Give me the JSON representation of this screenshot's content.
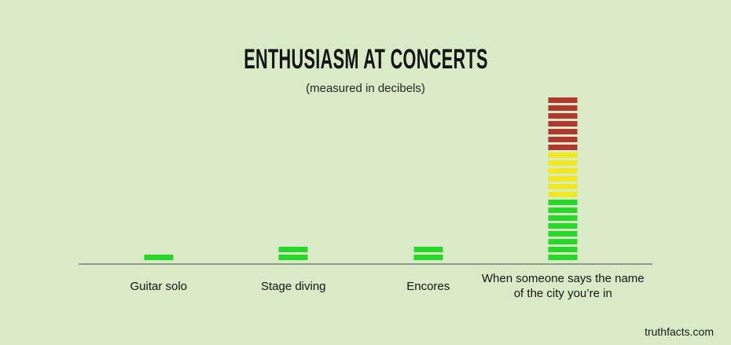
{
  "header": {
    "title": "ENTHUSIASM AT CONCERTS",
    "subtitle": "(measured in decibels)"
  },
  "footer": {
    "site": "truthfacts.com"
  },
  "chart_data": {
    "type": "bar",
    "title": "ENTHUSIASM AT CONCERTS",
    "subtitle": "(measured in decibels)",
    "unit": "decibels",
    "style": "equalizer-segment bars on a horizontal baseline, no y-axis, no gridlines, no legend",
    "categories": [
      "Guitar solo",
      "Stage diving",
      "Encores",
      "When someone says the name of the city you’re in"
    ],
    "values_in_segments": [
      1,
      2,
      2,
      21
    ],
    "bars": [
      {
        "label": "Guitar solo",
        "label_lines": [
          "Guitar solo"
        ],
        "segments": [
          {
            "color": "green",
            "count": 1
          }
        ]
      },
      {
        "label": "Stage diving",
        "label_lines": [
          "Stage diving"
        ],
        "segments": [
          {
            "color": "green",
            "count": 2
          }
        ]
      },
      {
        "label": "Encores",
        "label_lines": [
          "Encores"
        ],
        "segments": [
          {
            "color": "green",
            "count": 2
          }
        ]
      },
      {
        "label": "When someone says the name of the city you’re in",
        "label_lines": [
          "When someone says the name",
          "of the city you’re in"
        ],
        "segments": [
          {
            "color": "green",
            "count": 8
          },
          {
            "color": "yellow",
            "count": 6
          },
          {
            "color": "red",
            "count": 7
          }
        ]
      }
    ],
    "colors": {
      "green": "#28d828",
      "yellow": "#f2e81f",
      "red": "#b0392e",
      "red_gap": "#efe9ce",
      "background": "#d8eac6",
      "axis_line": "#8e9d8b",
      "text": "#151515"
    }
  }
}
